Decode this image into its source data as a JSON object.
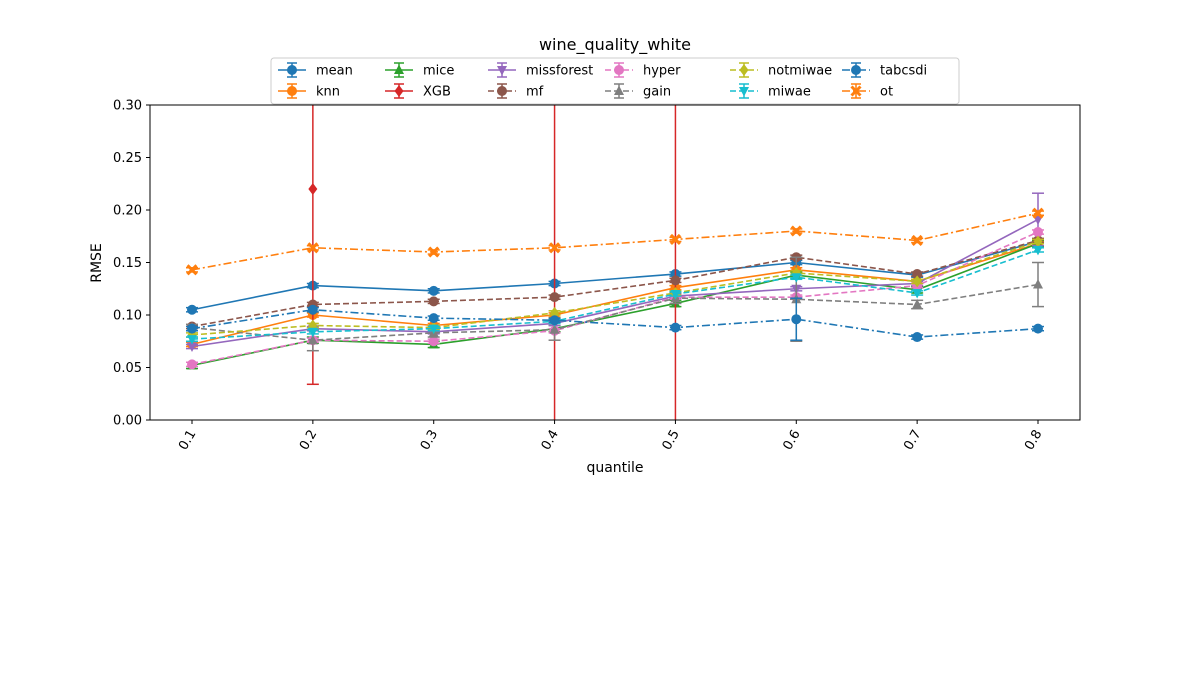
{
  "chart_data": {
    "type": "line",
    "title": "wine_quality_white",
    "xlabel": "quantile",
    "ylabel": "RMSE",
    "x": [
      0.1,
      0.2,
      0.3,
      0.4,
      0.5,
      0.6,
      0.7,
      0.8
    ],
    "x_tick_labels": [
      "0.1",
      "0.2",
      "0.3",
      "0.4",
      "0.5",
      "0.6",
      "0.7",
      "0.8"
    ],
    "ylim": [
      0.0,
      0.3
    ],
    "y_ticks": [
      0.0,
      0.05,
      0.1,
      0.15,
      0.2,
      0.25,
      0.3
    ],
    "y_tick_labels": [
      "0.00",
      "0.05",
      "0.10",
      "0.15",
      "0.20",
      "0.25",
      "0.30"
    ],
    "legend_position": "top-center",
    "series": [
      {
        "name": "mean",
        "color": "#1f77b4",
        "linestyle": "solid",
        "marker": "circle",
        "values": [
          0.105,
          0.128,
          0.123,
          0.13,
          0.139,
          0.15,
          0.138,
          0.17
        ],
        "errors": [
          0.002,
          0.002,
          0.002,
          0.002,
          0.002,
          0.002,
          0.002,
          0.002
        ]
      },
      {
        "name": "knn",
        "color": "#ff7f0e",
        "linestyle": "solid",
        "marker": "circle",
        "values": [
          0.072,
          0.1,
          0.09,
          0.1,
          0.126,
          0.143,
          0.132,
          0.168
        ],
        "errors": [
          0.002,
          0.002,
          0.002,
          0.002,
          0.002,
          0.002,
          0.002,
          0.002
        ]
      },
      {
        "name": "mice",
        "color": "#2ca02c",
        "linestyle": "solid",
        "marker": "triangle-up",
        "values": [
          0.052,
          0.076,
          0.072,
          0.087,
          0.111,
          0.138,
          0.124,
          0.168
        ],
        "errors": [
          0.003,
          0.003,
          0.003,
          0.003,
          0.003,
          0.003,
          0.003,
          0.003
        ]
      },
      {
        "name": "XGB",
        "color": "#d62728",
        "linestyle": "solid",
        "marker": "diamond",
        "values": [
          null,
          0.22,
          null,
          null,
          null,
          null,
          null,
          null
        ],
        "errors": [
          0,
          0.186,
          0,
          0,
          0,
          0,
          0,
          0
        ],
        "upper_off_chart": [
          false,
          true,
          false,
          true,
          true,
          false,
          false,
          false
        ]
      },
      {
        "name": "missforest",
        "color": "#9467bd",
        "linestyle": "solid",
        "marker": "triangle-down",
        "values": [
          0.07,
          0.087,
          0.084,
          0.092,
          0.118,
          0.125,
          0.13,
          0.191
        ],
        "errors": [
          0.002,
          0.002,
          0.002,
          0.002,
          0.002,
          0.002,
          0.002,
          0.025
        ]
      },
      {
        "name": "mf",
        "color": "#8c564b",
        "linestyle": "dashed",
        "marker": "circle",
        "values": [
          0.089,
          0.11,
          0.113,
          0.117,
          0.133,
          0.155,
          0.139,
          0.171
        ],
        "errors": [
          0.002,
          0.002,
          0.002,
          0.002,
          0.002,
          0.002,
          0.002,
          0.002
        ]
      },
      {
        "name": "hyper",
        "color": "#e377c2",
        "linestyle": "dashed",
        "marker": "circle",
        "values": [
          0.053,
          0.076,
          0.075,
          0.085,
          0.117,
          0.117,
          0.128,
          0.179
        ],
        "errors": [
          0.002,
          0.002,
          0.002,
          0.002,
          0.002,
          0.002,
          0.002,
          0.002
        ]
      },
      {
        "name": "gain",
        "color": "#7f7f7f",
        "linestyle": "dashed",
        "marker": "triangle-up",
        "values": [
          0.088,
          0.076,
          0.083,
          0.086,
          0.116,
          0.115,
          0.11,
          0.129
        ],
        "errors": [
          0.003,
          0.01,
          0.004,
          0.01,
          0.005,
          0.04,
          0.004,
          0.021
        ]
      },
      {
        "name": "notmiwae",
        "color": "#bcbd22",
        "linestyle": "dashed",
        "marker": "diamond",
        "values": [
          0.081,
          0.09,
          0.088,
          0.102,
          0.121,
          0.14,
          0.132,
          0.17
        ],
        "errors": [
          0.002,
          0.002,
          0.002,
          0.002,
          0.002,
          0.002,
          0.002,
          0.002
        ]
      },
      {
        "name": "miwae",
        "color": "#17becf",
        "linestyle": "dashed",
        "marker": "triangle-down",
        "values": [
          0.077,
          0.084,
          0.087,
          0.094,
          0.12,
          0.136,
          0.121,
          0.162
        ],
        "errors": [
          0.002,
          0.002,
          0.002,
          0.002,
          0.002,
          0.002,
          0.002,
          0.002
        ]
      },
      {
        "name": "tabcsdi",
        "color": "#1f77b4",
        "linestyle": "dashdot",
        "marker": "circle",
        "values": [
          0.087,
          0.105,
          0.097,
          0.095,
          0.088,
          0.096,
          0.079,
          0.087
        ],
        "errors": [
          0.002,
          0.002,
          0.002,
          0.002,
          0.002,
          0.02,
          0.002,
          0.002
        ]
      },
      {
        "name": "ot",
        "color": "#ff7f0e",
        "linestyle": "dashdot",
        "marker": "x",
        "values": [
          0.143,
          0.164,
          0.16,
          0.164,
          0.172,
          0.18,
          0.171,
          0.197
        ],
        "errors": [
          0.002,
          0.002,
          0.002,
          0.002,
          0.002,
          0.002,
          0.002,
          0.002
        ]
      }
    ]
  }
}
